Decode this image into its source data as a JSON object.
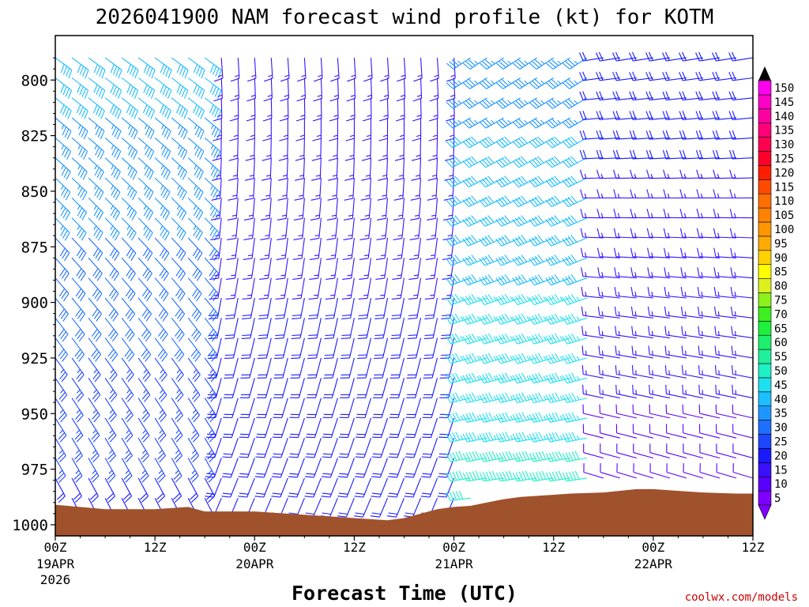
{
  "chart_data": {
    "type": "wind-barb-time-height",
    "title": "2026041900 NAM forecast wind profile (kt) for KOTM",
    "xlabel": "Forecast Time (UTC)",
    "ylabel": "",
    "credit": "coolwx.com/models",
    "x_hours_range": [
      0,
      84
    ],
    "y_pressure_range": [
      1005,
      780
    ],
    "y_ticks": [
      "800",
      "825",
      "850",
      "875",
      "900",
      "925",
      "950",
      "975",
      "1000"
    ],
    "x_ticks": [
      {
        "hour": 0,
        "label": "00Z",
        "date": "19APR",
        "year": "2026"
      },
      {
        "hour": 12,
        "label": "12Z",
        "date": "",
        "year": ""
      },
      {
        "hour": 24,
        "label": "00Z",
        "date": "20APR",
        "year": ""
      },
      {
        "hour": 36,
        "label": "12Z",
        "date": "",
        "year": ""
      },
      {
        "hour": 48,
        "label": "00Z",
        "date": "21APR",
        "year": ""
      },
      {
        "hour": 60,
        "label": "12Z",
        "date": "",
        "year": ""
      },
      {
        "hour": 72,
        "label": "00Z",
        "date": "22APR",
        "year": ""
      },
      {
        "hour": 84,
        "label": "12Z",
        "date": "",
        "year": ""
      }
    ],
    "surface_pressure": {
      "hours": [
        0,
        6,
        12,
        16,
        18,
        20,
        24,
        30,
        36,
        38,
        40,
        42,
        44,
        46,
        48,
        50,
        52,
        54,
        56,
        58,
        60,
        62,
        66,
        70,
        72,
        76,
        78,
        82,
        84
      ],
      "values": [
        991,
        993,
        993,
        992,
        994,
        994,
        994,
        995.5,
        997,
        997.5,
        998,
        997,
        995,
        993,
        992,
        991.5,
        990,
        988.5,
        987.5,
        987,
        986.5,
        986,
        985.5,
        984,
        984,
        985,
        985.5,
        986,
        986
      ]
    },
    "wind_regimes": [
      {
        "h0": 0,
        "h1": 20,
        "p_top": 780,
        "p_bot": 1005,
        "dir_from": 140,
        "speed_top": 40,
        "speed_bot": 20
      },
      {
        "h0": 20,
        "h1": 50,
        "p_top": 780,
        "p_bot": 1005,
        "dir_from": 190,
        "speed_top": 15,
        "speed_bot": 20
      },
      {
        "h0": 50,
        "h1": 66,
        "p_top": 780,
        "p_bot": 1005,
        "dir_from": 250,
        "speed_top": 35,
        "speed_bot": 50
      },
      {
        "h0": 66,
        "h1": 84,
        "p_top": 780,
        "p_bot": 1005,
        "dir_from": 275,
        "speed_top": 20,
        "speed_bot": 10
      }
    ],
    "colorbar": {
      "levels": [
        "5",
        "10",
        "15",
        "20",
        "25",
        "30",
        "35",
        "40",
        "45",
        "50",
        "55",
        "60",
        "65",
        "70",
        "75",
        "80",
        "85",
        "90",
        "95",
        "100",
        "105",
        "110",
        "115",
        "120",
        "125",
        "130",
        "135",
        "140",
        "145",
        "150"
      ],
      "colors": [
        "#7d00ff",
        "#5a00ff",
        "#3a10ff",
        "#1a1aff",
        "#1e46ff",
        "#1e6eff",
        "#1e96ff",
        "#1ebeff",
        "#1ee1f0",
        "#1ef0c8",
        "#1ef09b",
        "#1ef06e",
        "#1ef03c",
        "#3cf01e",
        "#8cf01e",
        "#dcf01e",
        "#ffff00",
        "#ffd200",
        "#ffaa00",
        "#ff9600",
        "#ff8200",
        "#ff6e00",
        "#ff4b00",
        "#ff1e00",
        "#ff0028",
        "#ff0050",
        "#ff0078",
        "#ff00a0",
        "#ff00c8",
        "#ff00f0"
      ]
    }
  }
}
